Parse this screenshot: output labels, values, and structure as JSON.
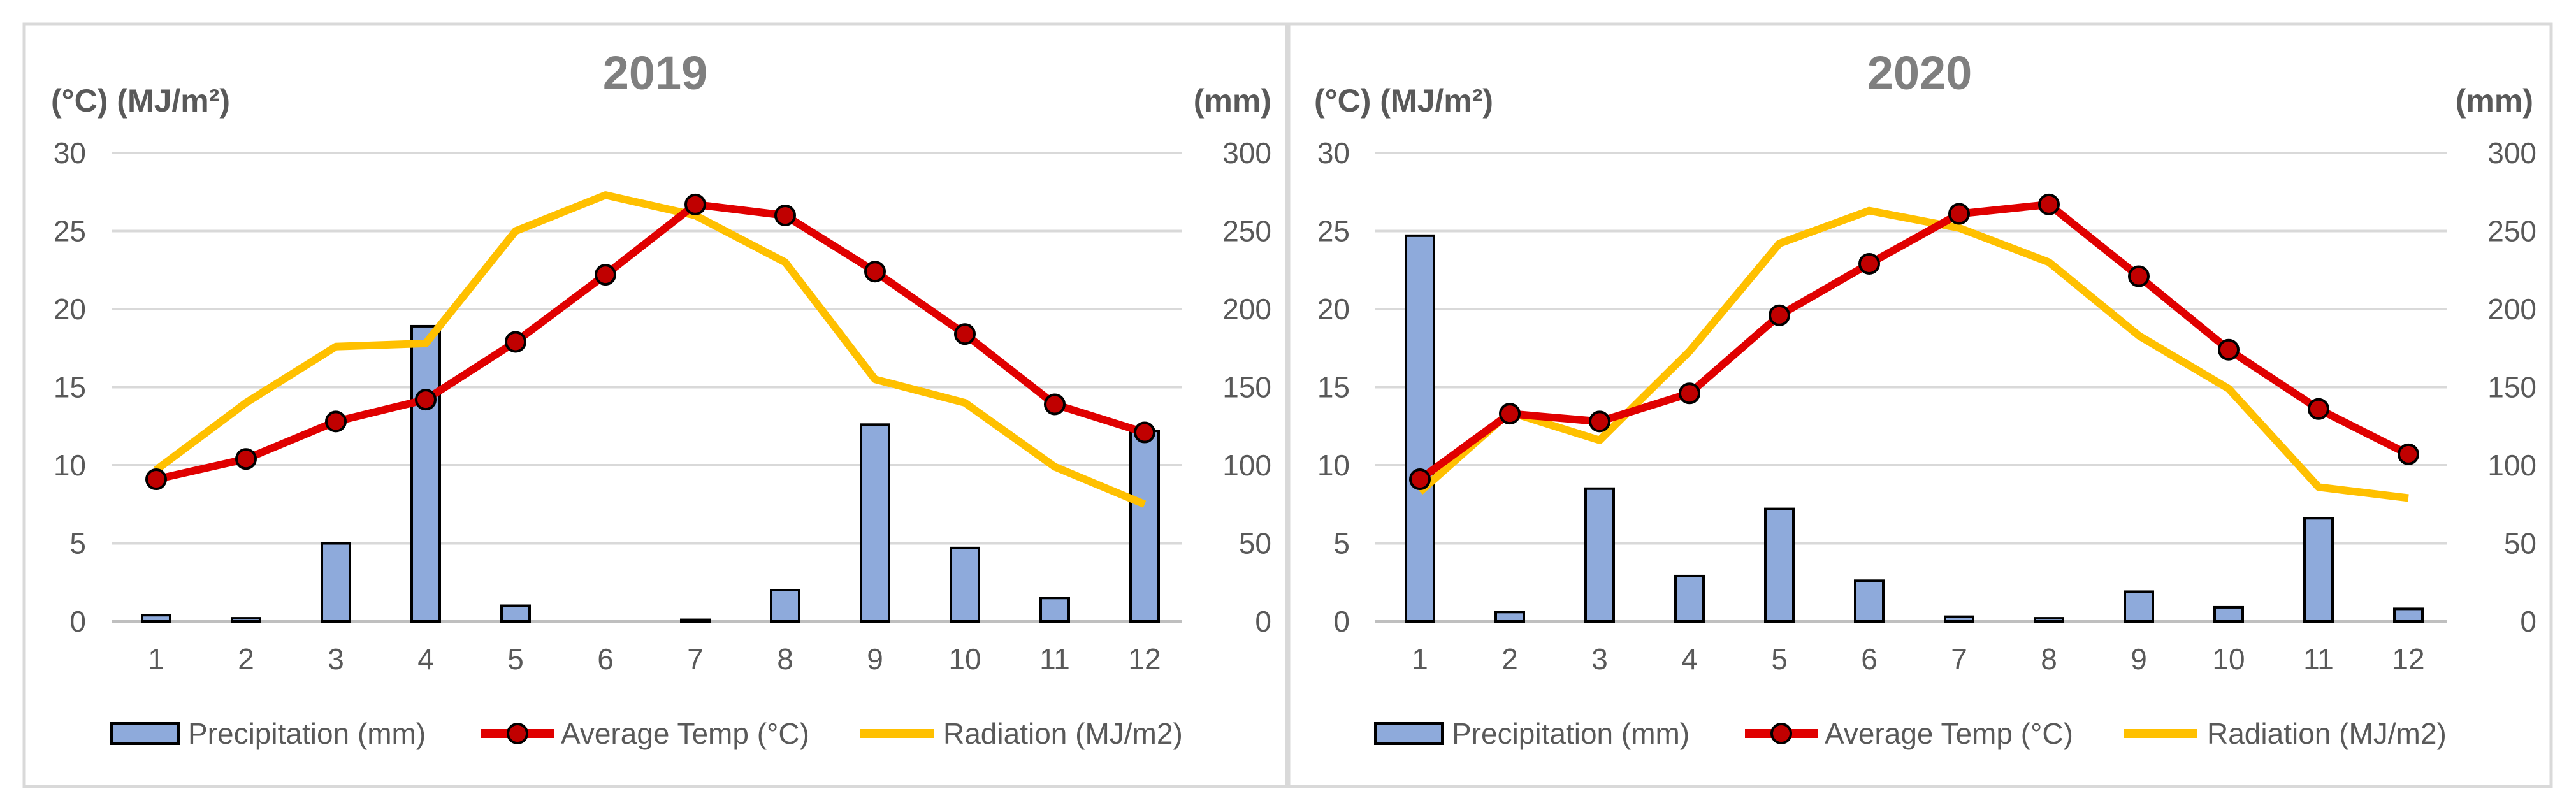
{
  "chart_data": [
    {
      "type": "bar+line",
      "title": "2019",
      "left_unit_label": "(°C) (MJ/m²)",
      "right_unit_label": "(mm)",
      "categories": [
        "1",
        "2",
        "3",
        "4",
        "5",
        "6",
        "7",
        "8",
        "9",
        "10",
        "11",
        "12"
      ],
      "left_axis": {
        "range": [
          0,
          30
        ],
        "ticks": [
          "0",
          "5",
          "10",
          "15",
          "20",
          "25",
          "30"
        ]
      },
      "right_axis": {
        "range": [
          0,
          300
        ],
        "ticks": [
          "0",
          "50",
          "100",
          "150",
          "200",
          "250",
          "300"
        ]
      },
      "grid": true,
      "legend_position": "bottom",
      "series": [
        {
          "name": "Precipitation (mm)",
          "kind": "bar",
          "axis": "right",
          "values": [
            4,
            2,
            50,
            189,
            10,
            0,
            1,
            20,
            126,
            47,
            15,
            122
          ]
        },
        {
          "name": "Average Temp (°C)",
          "kind": "line-marker",
          "axis": "left",
          "values": [
            9.1,
            10.4,
            12.8,
            14.2,
            17.9,
            22.2,
            26.7,
            26.0,
            22.4,
            18.4,
            13.9,
            12.1
          ]
        },
        {
          "name": "Radiation (MJ/m2)",
          "kind": "line",
          "axis": "left",
          "values": [
            9.7,
            14.0,
            17.6,
            17.8,
            25.0,
            27.3,
            26.0,
            23.0,
            15.5,
            14.0,
            9.9,
            7.5
          ]
        }
      ]
    },
    {
      "type": "bar+line",
      "title": "2020",
      "left_unit_label": "(°C) (MJ/m²)",
      "right_unit_label": "(mm)",
      "categories": [
        "1",
        "2",
        "3",
        "4",
        "5",
        "6",
        "7",
        "8",
        "9",
        "10",
        "11",
        "12"
      ],
      "left_axis": {
        "range": [
          0,
          30
        ],
        "ticks": [
          "0",
          "5",
          "10",
          "15",
          "20",
          "25",
          "30"
        ]
      },
      "right_axis": {
        "range": [
          0,
          300
        ],
        "ticks": [
          "0",
          "50",
          "100",
          "150",
          "200",
          "250",
          "300"
        ]
      },
      "grid": true,
      "legend_position": "bottom",
      "series": [
        {
          "name": "Precipitation (mm)",
          "kind": "bar",
          "axis": "right",
          "values": [
            247,
            6,
            85,
            29,
            72,
            26,
            3,
            2,
            19,
            9,
            66,
            8
          ]
        },
        {
          "name": "Average Temp (°C)",
          "kind": "line-marker",
          "axis": "left",
          "values": [
            9.1,
            13.3,
            12.8,
            14.6,
            19.6,
            22.9,
            26.1,
            26.7,
            22.1,
            17.4,
            13.6,
            10.7
          ]
        },
        {
          "name": "Radiation (MJ/m2)",
          "kind": "line",
          "axis": "left",
          "values": [
            8.3,
            13.4,
            11.6,
            17.3,
            24.2,
            26.3,
            25.2,
            23.0,
            18.3,
            14.9,
            8.6,
            7.9
          ]
        }
      ]
    }
  ],
  "colors": {
    "bar_fill": "#8eaadb",
    "bar_stroke": "#000000",
    "temp_line": "#e00000",
    "temp_marker_fill": "#c00000",
    "radiation_line": "#ffc000",
    "grid": "#d9d9d9",
    "text": "#595959",
    "title": "#7f7f7f",
    "panel_border": "#d9d9d9"
  }
}
